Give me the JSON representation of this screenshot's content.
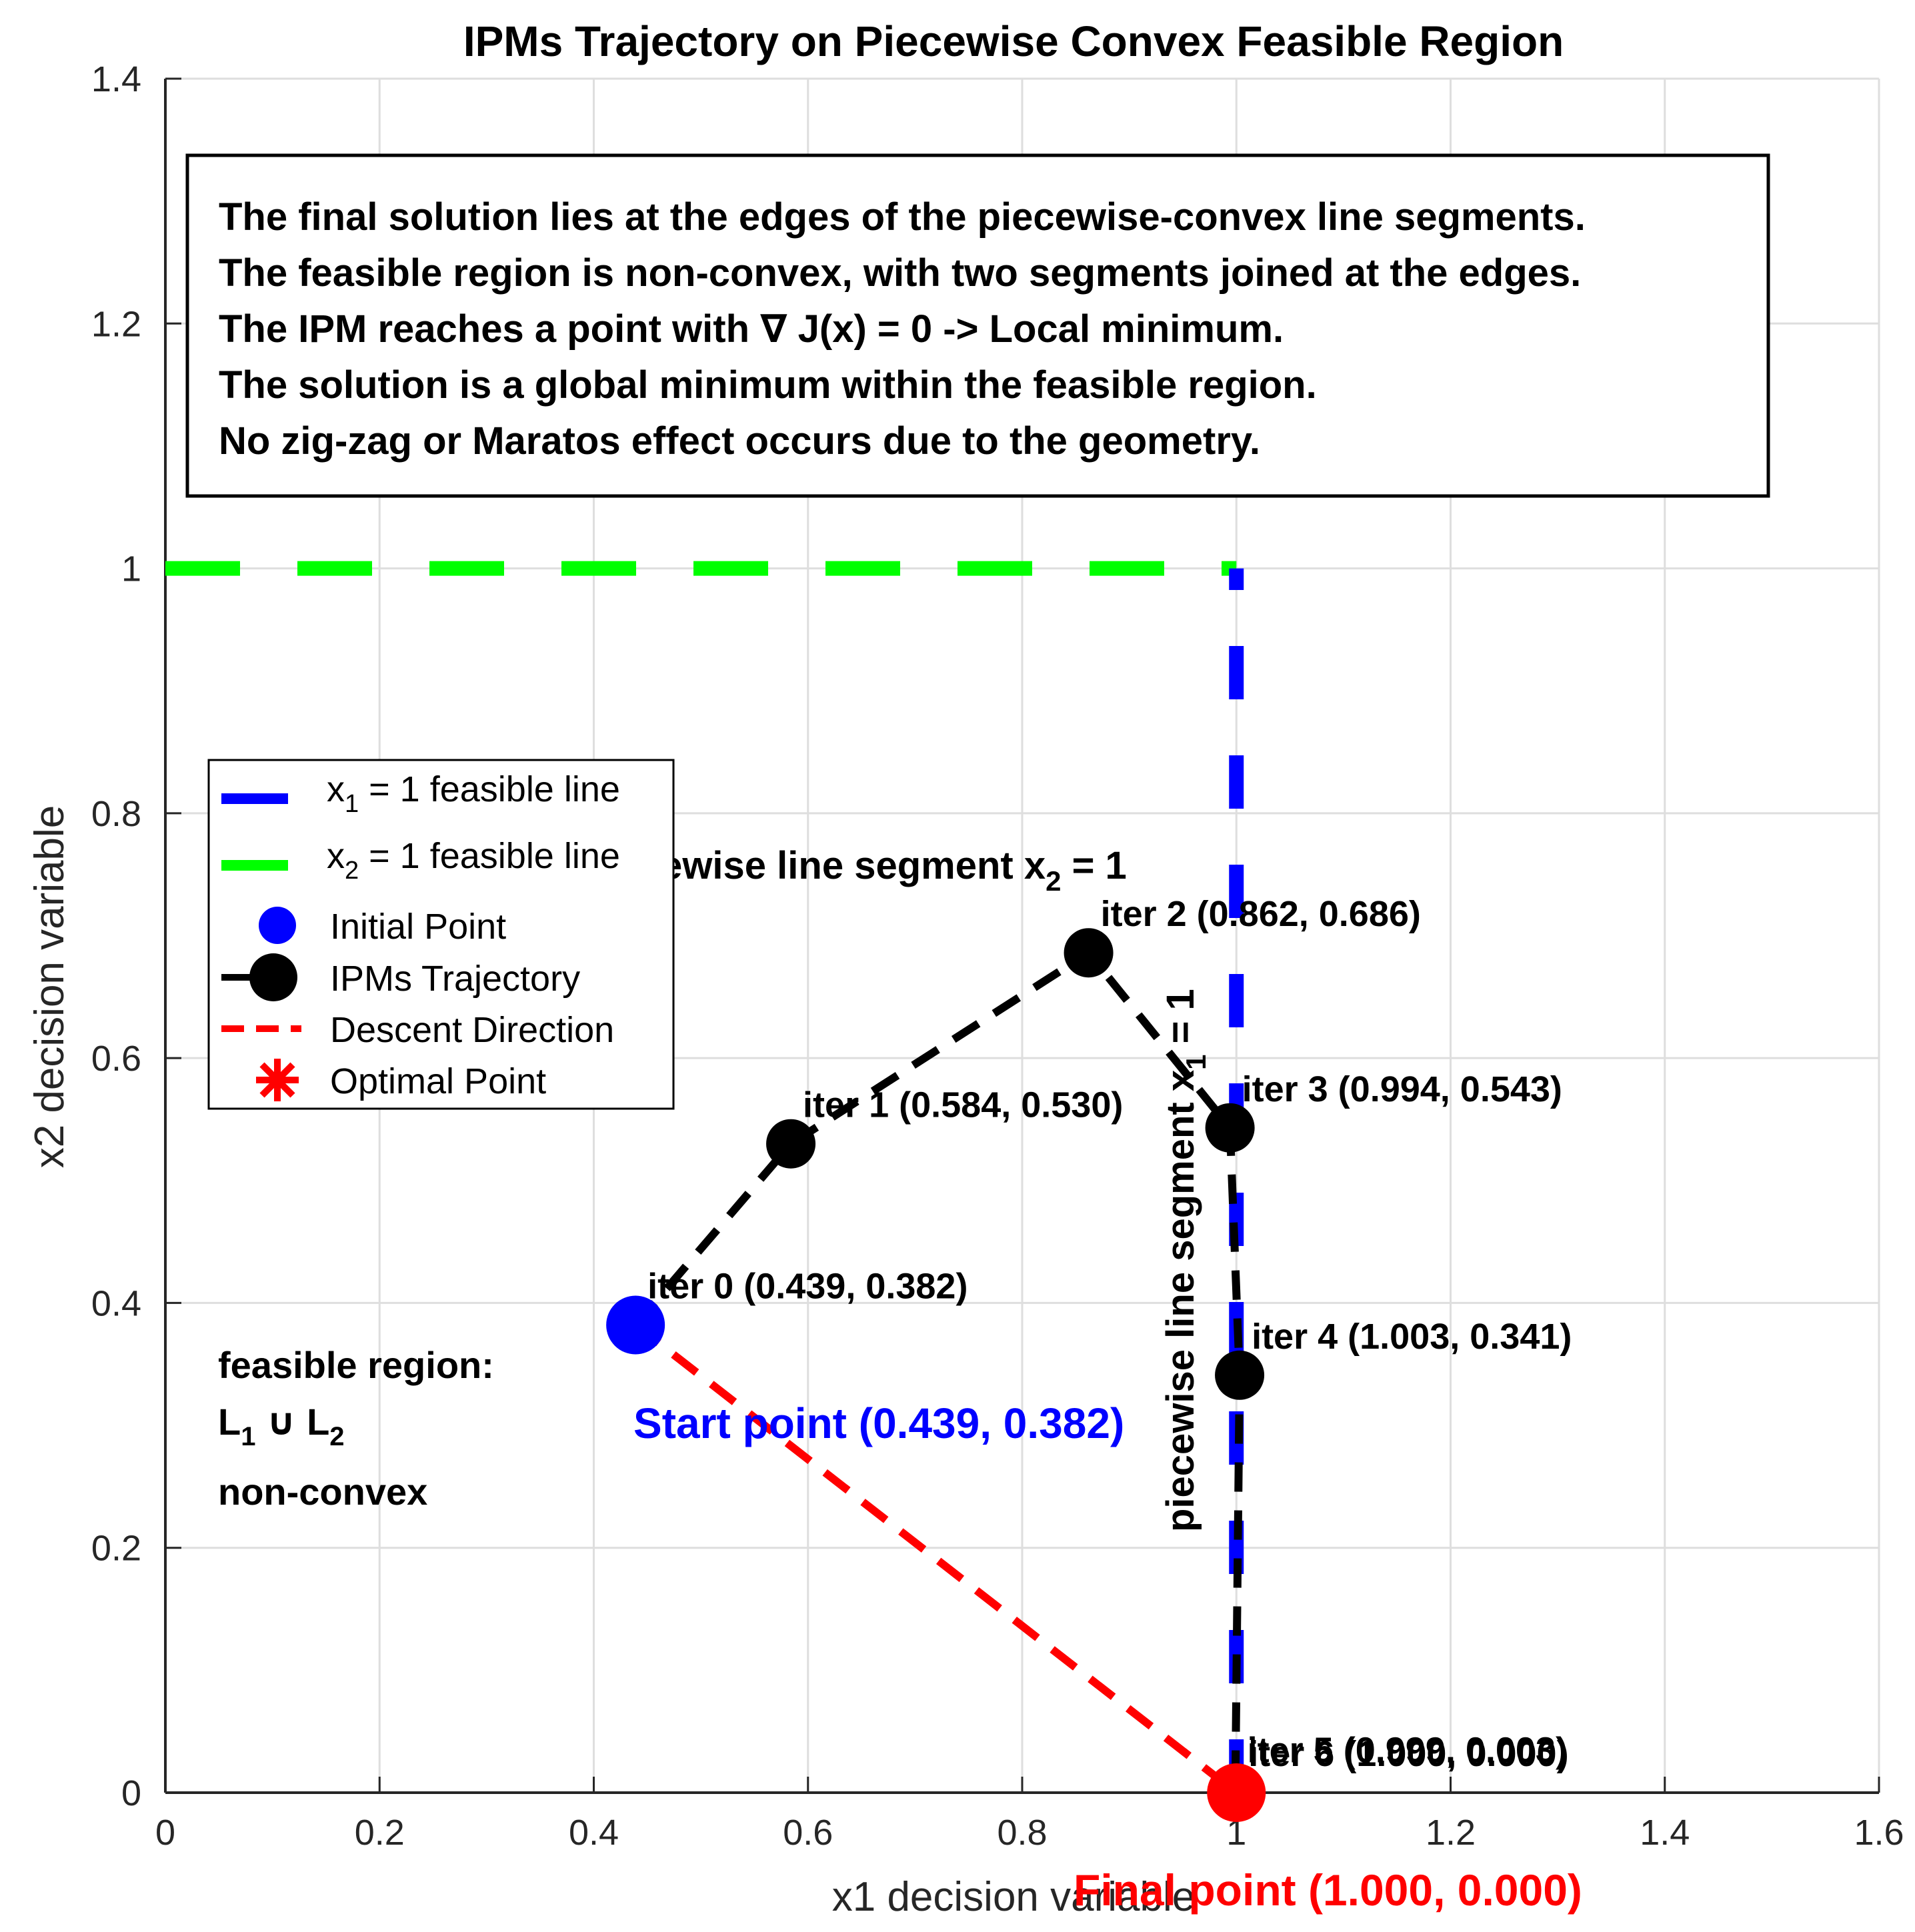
{
  "chart_data": {
    "type": "line",
    "title": "IPMs Trajectory on Piecewise Convex Feasible Region",
    "xlabel": "x1 decision variable",
    "ylabel": "x2 decision variable",
    "xlim": [
      0,
      1.6
    ],
    "ylim": [
      0,
      1.4
    ],
    "xticks": [
      "0",
      "0.2",
      "0.4",
      "0.6",
      "0.8",
      "1",
      "1.2",
      "1.4",
      "1.6"
    ],
    "yticks": [
      "0",
      "0.2",
      "0.4",
      "0.6",
      "0.8",
      "1",
      "1.2",
      "1.4"
    ],
    "grid": true,
    "legend_position": "left",
    "colors": {
      "x1_line": "#0000ff",
      "x2_line": "#00ff00",
      "trajectory": "#000000",
      "descent": "#ff0000",
      "initial": "#0000ff",
      "optimal": "#ff0000"
    },
    "series": [
      {
        "name_main": "x",
        "name_sub": "1",
        "name_rest": " = 1 feasible line",
        "x": [
          1,
          1
        ],
        "y": [
          0,
          1
        ]
      },
      {
        "name_main": "x",
        "name_sub": "2",
        "name_rest": " = 1 feasible line",
        "x": [
          0,
          1
        ],
        "y": [
          1,
          1
        ]
      },
      {
        "name": "Initial Point",
        "x": [
          0.439
        ],
        "y": [
          0.382
        ]
      },
      {
        "name": "IPMs Trajectory",
        "x": [
          0.439,
          0.584,
          0.862,
          0.994,
          1.003,
          0.999,
          1.0
        ],
        "y": [
          0.382,
          0.53,
          0.686,
          0.543,
          0.341,
          0.003,
          0.0
        ]
      },
      {
        "name": "Descent Direction",
        "x": [
          0.439,
          1.0
        ],
        "y": [
          0.382,
          0.0
        ]
      },
      {
        "name": "Optimal Point",
        "x": [
          1.0
        ],
        "y": [
          0.0
        ]
      }
    ],
    "point_labels": [
      {
        "text": "iter 0 (0.439, 0.382)",
        "x": 0.439,
        "y": 0.382
      },
      {
        "text": "iter 1 (0.584, 0.530)",
        "x": 0.584,
        "y": 0.53
      },
      {
        "text": "iter 2 (0.862, 0.686)",
        "x": 0.862,
        "y": 0.686
      },
      {
        "text": "iter 3 (0.994, 0.543)",
        "x": 0.994,
        "y": 0.543
      },
      {
        "text": "iter 4 (1.003, 0.341)",
        "x": 1.003,
        "y": 0.341
      },
      {
        "text": "iter 5 (0.999, 0.003)",
        "x": 0.999,
        "y": 0.003
      },
      {
        "text": "iter 6 (1.000, 0.000)",
        "x": 1.0,
        "y": 0.0
      }
    ],
    "annotations": {
      "info_box": [
        "The final solution lies at the edges of the piecewise-convex line segments.",
        "The feasible region is non-convex, with two segments joined at the edges.",
        "The IPM reaches a point with ∇ J(x) = 0 -> Local minimum.",
        "The solution is a global minimum within the feasible region.",
        "No zig-zag or Maratos effect occurs due to the geometry."
      ],
      "segment_x2_prefix": "piecewise line segment x",
      "segment_x2_sub": "2",
      "segment_x2_suffix": " = 1",
      "segment_x1_prefix": "piecewise line segment x",
      "segment_x1_sub": "1",
      "segment_x1_suffix": " = 1",
      "start_point": "Start point (0.439, 0.382)",
      "final_point": "Final point (1.000, 0.000)",
      "feasible_title": "feasible region:",
      "feasible_union_l1": "L",
      "feasible_union_l1_sub": "1",
      "feasible_union_op": " ∪ ",
      "feasible_union_l2": "L",
      "feasible_union_l2_sub": "2",
      "feasible_type": "non-convex"
    }
  }
}
